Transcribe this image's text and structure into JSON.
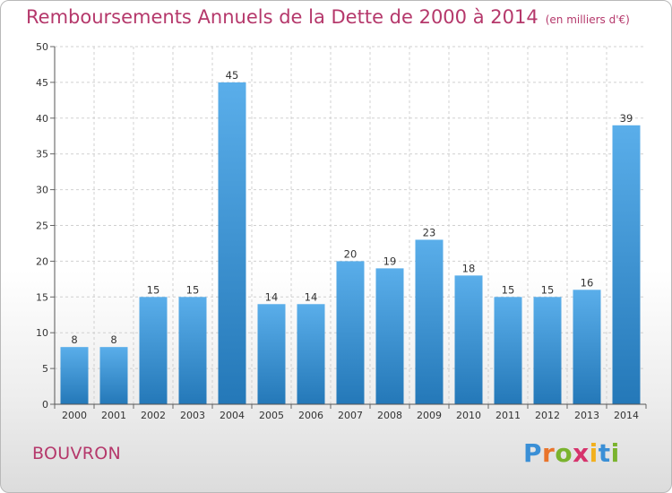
{
  "title": "Remboursements Annuels de la Dette de 2000 à 2014",
  "unit": "(en milliers d'€)",
  "commune": "BOUVRON",
  "logo": {
    "letters": [
      "P",
      "r",
      "o",
      "x",
      "i",
      "t",
      "i"
    ],
    "colors": [
      "#3a8fd6",
      "#e9742b",
      "#7ab32e",
      "#d6336c",
      "#f2b01e",
      "#3a8fd6",
      "#7ab32e"
    ]
  },
  "colors": {
    "accent": "#b5386b",
    "bar_top": "#5aaeea",
    "bar_bottom": "#2478b8",
    "grid": "#d0d0d0"
  },
  "chart_data": {
    "type": "bar",
    "title": "Remboursements Annuels de la Dette de 2000 à 2014",
    "categories": [
      "2000",
      "2001",
      "2002",
      "2003",
      "2004",
      "2005",
      "2006",
      "2007",
      "2008",
      "2009",
      "2010",
      "2011",
      "2012",
      "2013",
      "2014"
    ],
    "values": [
      8,
      8,
      15,
      15,
      45,
      14,
      14,
      20,
      19,
      23,
      18,
      15,
      15,
      16,
      39
    ],
    "ylim": [
      0,
      50
    ],
    "yticks": [
      0,
      5,
      10,
      15,
      20,
      25,
      30,
      35,
      40,
      45,
      50
    ],
    "grid": true,
    "data_labels": true
  }
}
